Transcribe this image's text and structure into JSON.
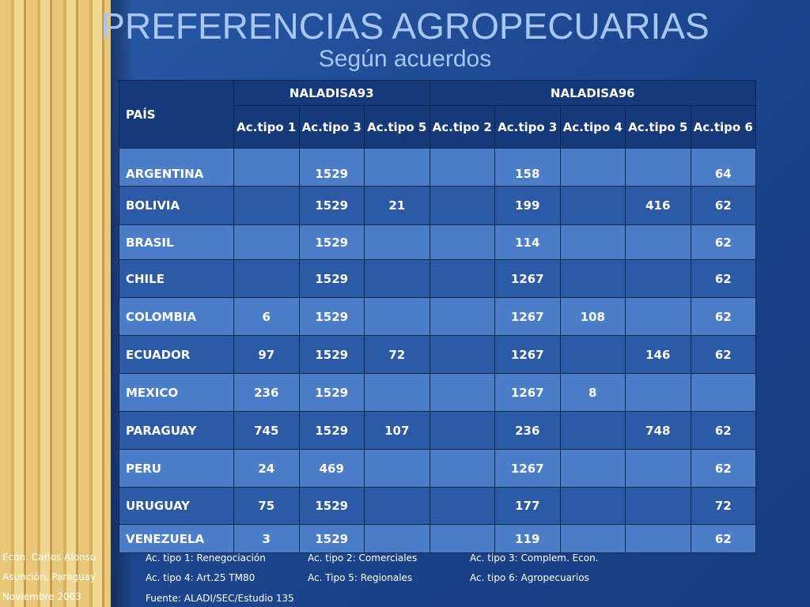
{
  "header": {
    "title": "PREFERENCIAS AGROPECUARIAS",
    "subtitle": "Según acuerdos"
  },
  "table": {
    "corner": "PAÍS",
    "groups": [
      {
        "label": "NALADISA93",
        "span": 3
      },
      {
        "label": "NALADISA96",
        "span": 5
      }
    ],
    "columns": [
      "Ac.tipo 1",
      "Ac.tipo 3",
      "Ac.tipo 5",
      "Ac.tipo 2",
      "Ac.tipo 3",
      "Ac.tipo 4",
      "Ac.tipo 5",
      "Ac.tipo 6"
    ],
    "rows": [
      [
        "ARGENTINA",
        null,
        1529,
        null,
        null,
        158,
        null,
        null,
        64
      ],
      [
        "BOLIVIA",
        null,
        1529,
        21,
        null,
        199,
        null,
        416,
        62
      ],
      [
        "BRASIL",
        null,
        1529,
        null,
        null,
        114,
        null,
        null,
        62
      ],
      [
        "CHILE",
        null,
        1529,
        null,
        null,
        1267,
        null,
        null,
        62
      ],
      [
        "COLOMBIA",
        6,
        1529,
        null,
        null,
        1267,
        108,
        null,
        62
      ],
      [
        "ECUADOR",
        97,
        1529,
        72,
        null,
        1267,
        null,
        146,
        62
      ],
      [
        "MEXICO",
        236,
        1529,
        null,
        null,
        1267,
        8,
        null,
        null
      ],
      [
        "PARAGUAY",
        745,
        1529,
        107,
        null,
        236,
        null,
        748,
        62
      ],
      [
        "PERU",
        24,
        469,
        null,
        null,
        1267,
        null,
        null,
        62
      ],
      [
        "URUGUAY",
        75,
        1529,
        null,
        null,
        177,
        null,
        null,
        72
      ],
      [
        "VENEZUELA",
        3,
        1529,
        null,
        null,
        119,
        null,
        null,
        62
      ]
    ]
  },
  "author": [
    "Econ. Carlos Alonso",
    "Asunción, Paraguay",
    "Noviembre 2003"
  ],
  "notes": [
    "Ac. tipo 1: Renegociación",
    "Ac. tipo 2: Comerciales",
    "Ac. tipo 3: Complem. Econ.",
    "Ac. tipo 4: Art.25 TM80",
    "Ac. Tipo 5: Regionales",
    "Ac. tipo 6: Agropecuarios"
  ],
  "source": "Fuente: ALADI/SEC/Estudio 135"
}
